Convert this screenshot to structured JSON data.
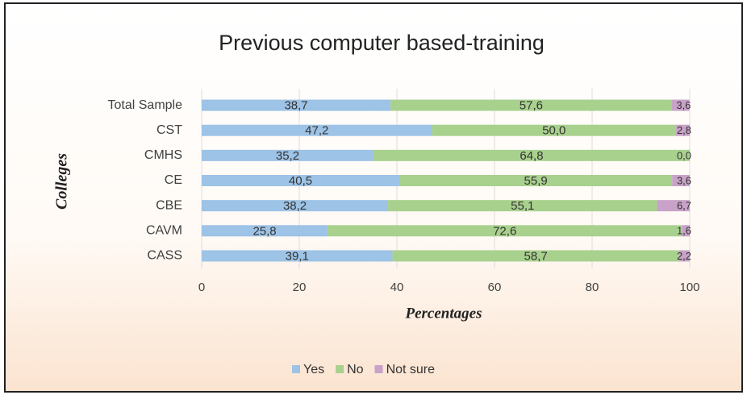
{
  "chart_data": {
    "type": "stacked-bar-horizontal",
    "title": "Previous computer based-training",
    "x_label": "Percentages",
    "y_label": "Colleges",
    "categories": [
      "Total Sample",
      "CST",
      "CMHS",
      "CE",
      "CBE",
      "CAVM",
      "CASS"
    ],
    "series": [
      {
        "name": "Yes",
        "color": "#9dc3e6",
        "values": [
          38.7,
          47.2,
          35.2,
          40.5,
          38.2,
          25.8,
          39.1
        ],
        "value_labels": [
          "38,7",
          "47,2",
          "35,2",
          "40,5",
          "38,2",
          "25,8",
          "39,1"
        ]
      },
      {
        "name": "No",
        "color": "#a9d18e",
        "values": [
          57.6,
          50.0,
          64.8,
          55.9,
          55.1,
          72.6,
          58.7
        ],
        "value_labels": [
          "57,6",
          "50,0",
          "64,8",
          "55,9",
          "55,1",
          "72,6",
          "58,7"
        ]
      },
      {
        "name": "Not sure",
        "color": "#c8a2c8",
        "values": [
          3.6,
          2.8,
          0.0,
          3.6,
          6.7,
          1.6,
          2.2
        ],
        "value_labels": [
          "3,6",
          "2,8",
          "0,0",
          "3,6",
          "6,7",
          "1,6",
          "2,2"
        ]
      }
    ],
    "xlim": [
      0,
      100
    ],
    "xticks": [
      0,
      20,
      40,
      60,
      80,
      100
    ],
    "grid": true,
    "legend": "bottom"
  }
}
